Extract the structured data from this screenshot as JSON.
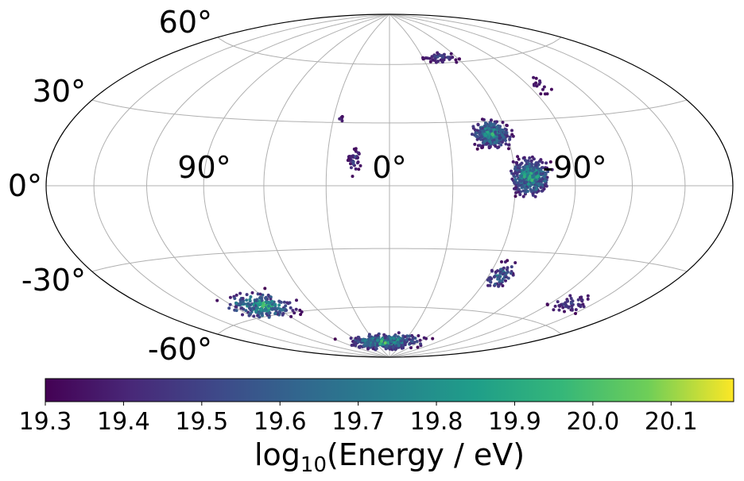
{
  "chart_data": {
    "type": "scatter",
    "projection": "hammer (all-sky, galactic-style longitude increasing to the left)",
    "lon_ticks": [
      "90°",
      "0°",
      "-90°"
    ],
    "lat_ticks": [
      "60°",
      "30°",
      "0°",
      "-30°",
      "-60°"
    ],
    "grid": true,
    "colormap": "viridis",
    "colorbar": {
      "label_main": "log",
      "label_sub": "10",
      "label_rest": "(Energy / eV)",
      "range": [
        19.3,
        20.18
      ],
      "ticks": [
        "19.3",
        "19.4",
        "19.5",
        "19.6",
        "19.7",
        "19.8",
        "19.9",
        "20.0",
        "20.1"
      ]
    },
    "clusters": [
      {
        "lon": -52,
        "lat": 24,
        "spread_lon": 6,
        "spread_lat": 4,
        "n": 320,
        "peak": 20.05
      },
      {
        "lon": -68,
        "lat": 4,
        "spread_lon": 6,
        "spread_lat": 5,
        "n": 420,
        "peak": 20.15
      },
      {
        "lon": 17,
        "lat": 12,
        "spread_lon": 2,
        "spread_lat": 4,
        "n": 40,
        "peak": 19.6
      },
      {
        "lon": 26,
        "lat": 32,
        "spread_lon": 1,
        "spread_lat": 2,
        "n": 6,
        "peak": 19.5
      },
      {
        "lon": -47,
        "lat": 63,
        "spread_lon": 10,
        "spread_lat": 2,
        "n": 50,
        "peak": 19.6
      },
      {
        "lon": -98,
        "lat": 45,
        "spread_lon": 4,
        "spread_lat": 3,
        "n": 16,
        "peak": 19.5
      },
      {
        "lon": 100,
        "lat": -55,
        "spread_lon": 16,
        "spread_lat": 4,
        "n": 220,
        "peak": 20.15
      },
      {
        "lon": 10,
        "lat": -80,
        "spread_lon": 45,
        "spread_lat": 3,
        "n": 420,
        "peak": 20.15
      },
      {
        "lon": -67,
        "lat": -42,
        "spread_lon": 5,
        "spread_lat": 4,
        "n": 70,
        "peak": 19.85
      },
      {
        "lon": -135,
        "lat": -50,
        "spread_lon": 10,
        "spread_lat": 3,
        "n": 50,
        "peak": 19.6
      }
    ]
  }
}
